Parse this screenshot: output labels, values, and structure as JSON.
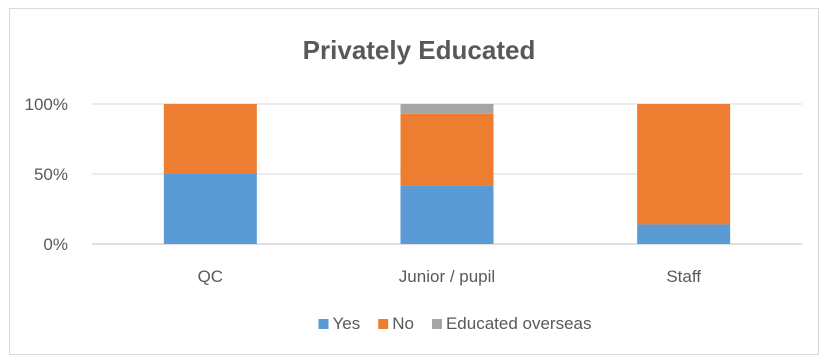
{
  "chart_data": {
    "type": "bar",
    "stacked": true,
    "title": "Privately Educated",
    "categories": [
      "QC",
      "Junior / pupil",
      "Staff"
    ],
    "series": [
      {
        "name": "Yes",
        "color": "#5b9bd5",
        "values": [
          50,
          42,
          14
        ]
      },
      {
        "name": "No",
        "color": "#ed7d31",
        "values": [
          50,
          51,
          86
        ]
      },
      {
        "name": "Educated overseas",
        "color": "#a5a5a5",
        "values": [
          0,
          7,
          0
        ]
      }
    ],
    "ylim": [
      0,
      100
    ],
    "yticks": [
      "0%",
      "50%",
      "100%"
    ],
    "ytick_values": [
      0,
      50,
      100
    ],
    "grid": true,
    "legend_position": "bottom"
  }
}
